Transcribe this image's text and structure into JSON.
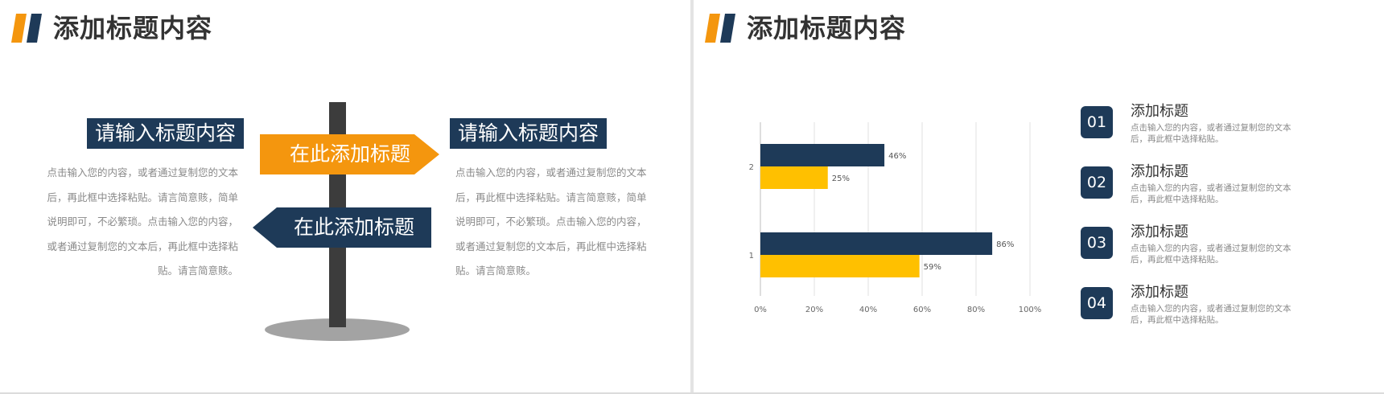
{
  "colors": {
    "navy": "#1e3a58",
    "orange": "#f4960e",
    "yellow": "#ffc000",
    "post": "#3c3c3c",
    "shadow": "#a3a3a3"
  },
  "left_slide": {
    "title": "添加标题内容",
    "left_heading": "请输入标题内容",
    "right_heading": "请输入标题内容",
    "left_lines": [
      "点击输入您的内容，或者通过复制您的文本",
      "后，再此框中选择粘贴。请言简意赅，简单",
      "说明即可，不必繁琐。点击输入您的内容，",
      "或者通过复制您的文本后，再此框中选择粘",
      "贴。请言简意赅。"
    ],
    "right_lines": [
      "点击输入您的内容，或者通过复制您的文本",
      "后，再此框中选择粘贴。请言简意赅，简单",
      "说明即可，不必繁琐。点击输入您的内容，",
      "或者通过复制您的文本后，再此框中选择粘",
      "贴。请言简意赅。"
    ],
    "sign_top": "在此添加标题",
    "sign_bottom": "在此添加标题"
  },
  "right_slide": {
    "title": "添加标题内容",
    "items": [
      {
        "num": "01",
        "title": "添加标题",
        "desc_lines": [
          "点击输入您的内容，或者通过复制您的文本",
          "后，再此框中选择粘贴。"
        ]
      },
      {
        "num": "02",
        "title": "添加标题",
        "desc_lines": [
          "点击输入您的内容，或者通过复制您的文本",
          "后，再此框中选择粘贴。"
        ]
      },
      {
        "num": "03",
        "title": "添加标题",
        "desc_lines": [
          "点击输入您的内容，或者通过复制您的文本",
          "后，再此框中选择粘贴。"
        ]
      },
      {
        "num": "04",
        "title": "添加标题",
        "desc_lines": [
          "点击输入您的内容，或者通过复制您的文本",
          "后，再此框中选择粘贴。"
        ]
      }
    ]
  },
  "chart_data": {
    "type": "bar",
    "orientation": "horizontal",
    "categories": [
      "1",
      "2"
    ],
    "series": [
      {
        "values": [
          86,
          46
        ],
        "color": "#1e3a58"
      },
      {
        "values": [
          59,
          25
        ],
        "color": "#ffc000"
      }
    ],
    "value_labels": [
      [
        "86%",
        "46%"
      ],
      [
        "59%",
        "25%"
      ]
    ],
    "xlim": [
      0,
      100
    ],
    "x_ticks": [
      "0%",
      "20%",
      "40%",
      "60%",
      "80%",
      "100%"
    ],
    "grid": true,
    "legend": "none"
  }
}
